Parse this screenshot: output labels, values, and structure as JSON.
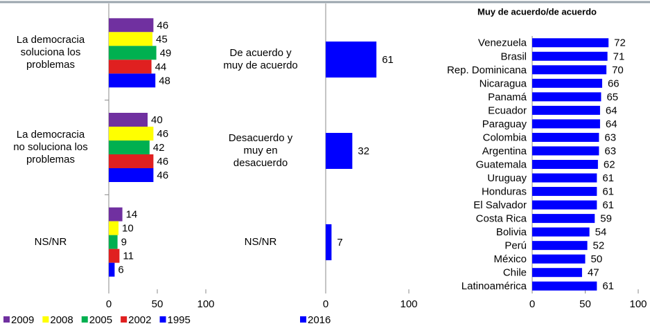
{
  "chart_data": [
    {
      "type": "bar",
      "categories": [
        "La democracia\nsoluciona los\nproblemas",
        "La democracia\nno soluciona los\nproblemas",
        "NS/NR"
      ],
      "series": [
        {
          "name": "2009",
          "color": "#7030a0",
          "values": [
            46,
            40,
            14
          ]
        },
        {
          "name": "2008",
          "color": "#ffff00",
          "values": [
            45,
            46,
            10
          ]
        },
        {
          "name": "2005",
          "color": "#00b050",
          "values": [
            49,
            42,
            9
          ]
        },
        {
          "name": "2002",
          "color": "#e02020",
          "values": [
            44,
            46,
            11
          ]
        },
        {
          "name": "1995",
          "color": "#0000ff",
          "values": [
            48,
            46,
            6
          ]
        }
      ],
      "xlim": [
        0,
        100
      ],
      "xticks": [
        0,
        50,
        100
      ]
    },
    {
      "type": "bar",
      "categories": [
        "De acuerdo y\nmuy de acuerdo",
        "Desacuerdo y\nmuy en\ndesacuerdo",
        "NS/NR"
      ],
      "series": [
        {
          "name": "2016",
          "color": "#0000ff",
          "values": [
            61,
            32,
            7
          ]
        }
      ],
      "xlim": [
        0,
        100
      ],
      "xticks": [
        0,
        100
      ]
    },
    {
      "type": "bar",
      "title": "Muy de acuerdo/de acuerdo",
      "categories": [
        "Venezuela",
        "Brasil",
        "Rep. Dominicana",
        "Nicaragua",
        "Panamá",
        "Ecuador",
        "Paraguay",
        "Colombia",
        "Argentina",
        "Guatemala",
        "Uruguay",
        "Honduras",
        "El Salvador",
        "Costa Rica",
        "Bolivia",
        "Perú",
        "México",
        "Chile",
        "Latinoamérica"
      ],
      "series": [
        {
          "color": "#0000ff",
          "values": [
            72,
            71,
            70,
            66,
            65,
            64,
            64,
            63,
            63,
            62,
            61,
            61,
            61,
            59,
            54,
            52,
            50,
            47,
            61
          ]
        }
      ],
      "xlim": [
        0,
        100
      ],
      "xticks": [
        0,
        50,
        100
      ]
    }
  ]
}
